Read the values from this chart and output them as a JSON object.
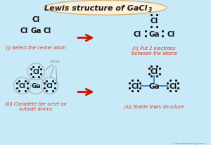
{
  "title_main": "Lewis structure of GaCl",
  "title_sub": "3",
  "bg_color": "#c8eaf8",
  "title_bg": "#fdf0d8",
  "title_text_color": "#1a1a1a",
  "atom_color": "#111111",
  "label_color": "#e03010",
  "dot_color": "#111111",
  "arrow_color": "#cc1100",
  "bond_color": "#3388cc",
  "watermark": "© knordsilearning.com",
  "panel_labels": [
    "(i) Select the center atom",
    "(ii) Put 2 electrons\nbetween the atoms",
    "(iii) Complete the octet on\noutside atoms",
    "(iv) Stable lewis structure"
  ],
  "xlim": [
    0,
    10
  ],
  "ylim": [
    0,
    7
  ]
}
